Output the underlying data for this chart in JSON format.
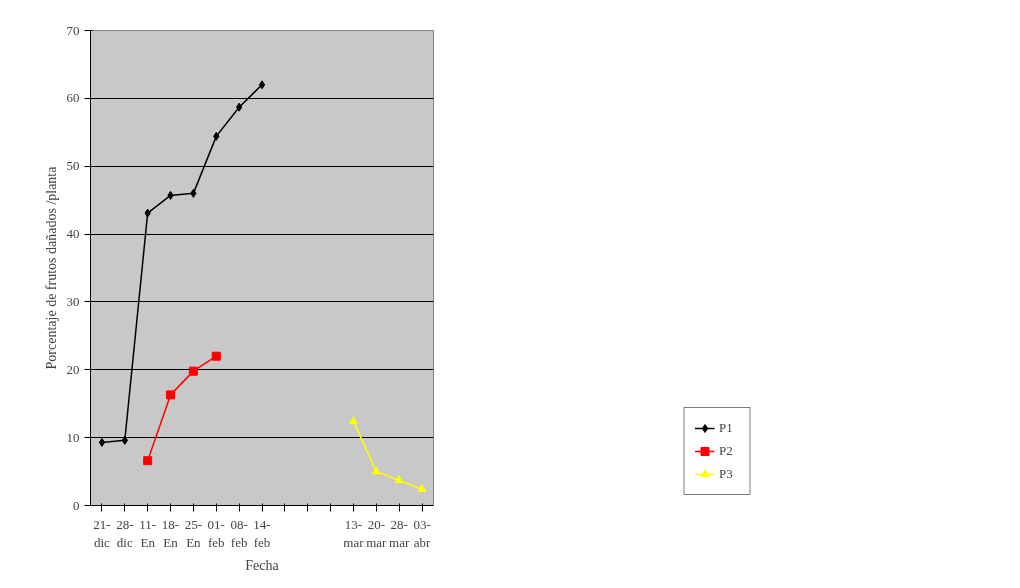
{
  "chart_data": {
    "type": "line",
    "xlabel": "Fecha",
    "ylabel": "Porcentaje de frutos dañados /planta",
    "categories": [
      "21-dic",
      "28-dic",
      "11-En",
      "18-En",
      "25-En",
      "01-feb",
      "08-feb",
      "14-feb",
      null,
      null,
      null,
      "13-mar",
      "20-mar",
      "28-mar",
      "03-abr"
    ],
    "series": [
      {
        "name": "P1",
        "color": "#000000",
        "marker": "diamond",
        "values": [
          9.3,
          9.6,
          43.1,
          45.7,
          46.0,
          54.4,
          58.7,
          62.0,
          null,
          null,
          null,
          null,
          null,
          null,
          null
        ]
      },
      {
        "name": "P2",
        "color": "#ff0000",
        "marker": "square",
        "values": [
          null,
          null,
          6.6,
          16.3,
          19.8,
          22.0,
          null,
          null,
          null,
          null,
          null,
          null,
          null,
          null,
          null
        ]
      },
      {
        "name": "P3",
        "color": "#ffff00",
        "marker": "triangle",
        "values": [
          null,
          null,
          null,
          null,
          null,
          null,
          null,
          null,
          null,
          null,
          null,
          12.4,
          5.0,
          3.7,
          2.4
        ]
      }
    ],
    "ylim": [
      0,
      70
    ],
    "yticks": [
      0,
      10,
      20,
      30,
      40,
      50,
      60,
      70
    ],
    "grid": "y",
    "legend": "right"
  }
}
